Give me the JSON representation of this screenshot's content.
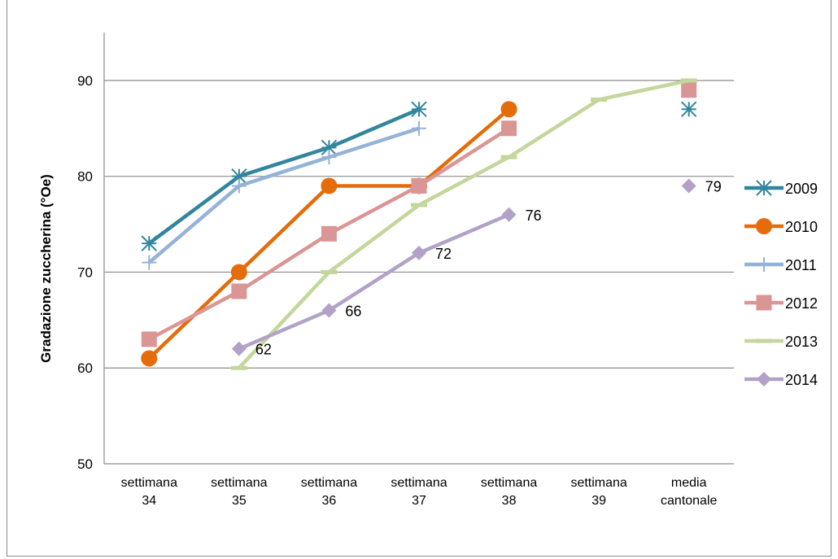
{
  "chart_data": {
    "type": "line",
    "ylabel": "Gradazione zuccherina (°Oe)",
    "ylim": [
      50,
      95
    ],
    "yticks": [
      50,
      60,
      70,
      80,
      90
    ],
    "grid": true,
    "legend_position": "right",
    "categories": [
      [
        "settimana",
        "34"
      ],
      [
        "settimana",
        "35"
      ],
      [
        "settimana",
        "36"
      ],
      [
        "settimana",
        "37"
      ],
      [
        "settimana",
        "38"
      ],
      [
        "settimana",
        "39"
      ],
      [
        "media",
        "cantonale"
      ]
    ],
    "series": [
      {
        "name": "2009",
        "color": "#31859c",
        "marker": "star",
        "values": [
          73,
          80,
          83,
          87,
          null,
          null,
          87
        ],
        "connected_upto": 3,
        "labels": false
      },
      {
        "name": "2010",
        "color": "#e46c0a",
        "marker": "circle",
        "values": [
          61,
          70,
          79,
          79,
          87,
          null,
          null
        ],
        "connected_upto": 4,
        "labels": false
      },
      {
        "name": "2011",
        "color": "#95b3d7",
        "marker": "plus",
        "values": [
          71,
          79,
          82,
          85,
          null,
          null,
          89
        ],
        "connected_upto": 3,
        "labels": false
      },
      {
        "name": "2012",
        "color": "#d99694",
        "marker": "square",
        "values": [
          63,
          68,
          74,
          79,
          85,
          null,
          89
        ],
        "connected_upto": 4,
        "labels": false
      },
      {
        "name": "2013",
        "color": "#c3d69b",
        "marker": "dash",
        "values": [
          null,
          60,
          70,
          77,
          82,
          88,
          90
        ],
        "connected_upto": 6,
        "labels": false
      },
      {
        "name": "2014",
        "color": "#b3a2c7",
        "marker": "diamond",
        "values": [
          null,
          62,
          66,
          72,
          76,
          null,
          79
        ],
        "connected_upto": 4,
        "labels": true
      }
    ]
  }
}
